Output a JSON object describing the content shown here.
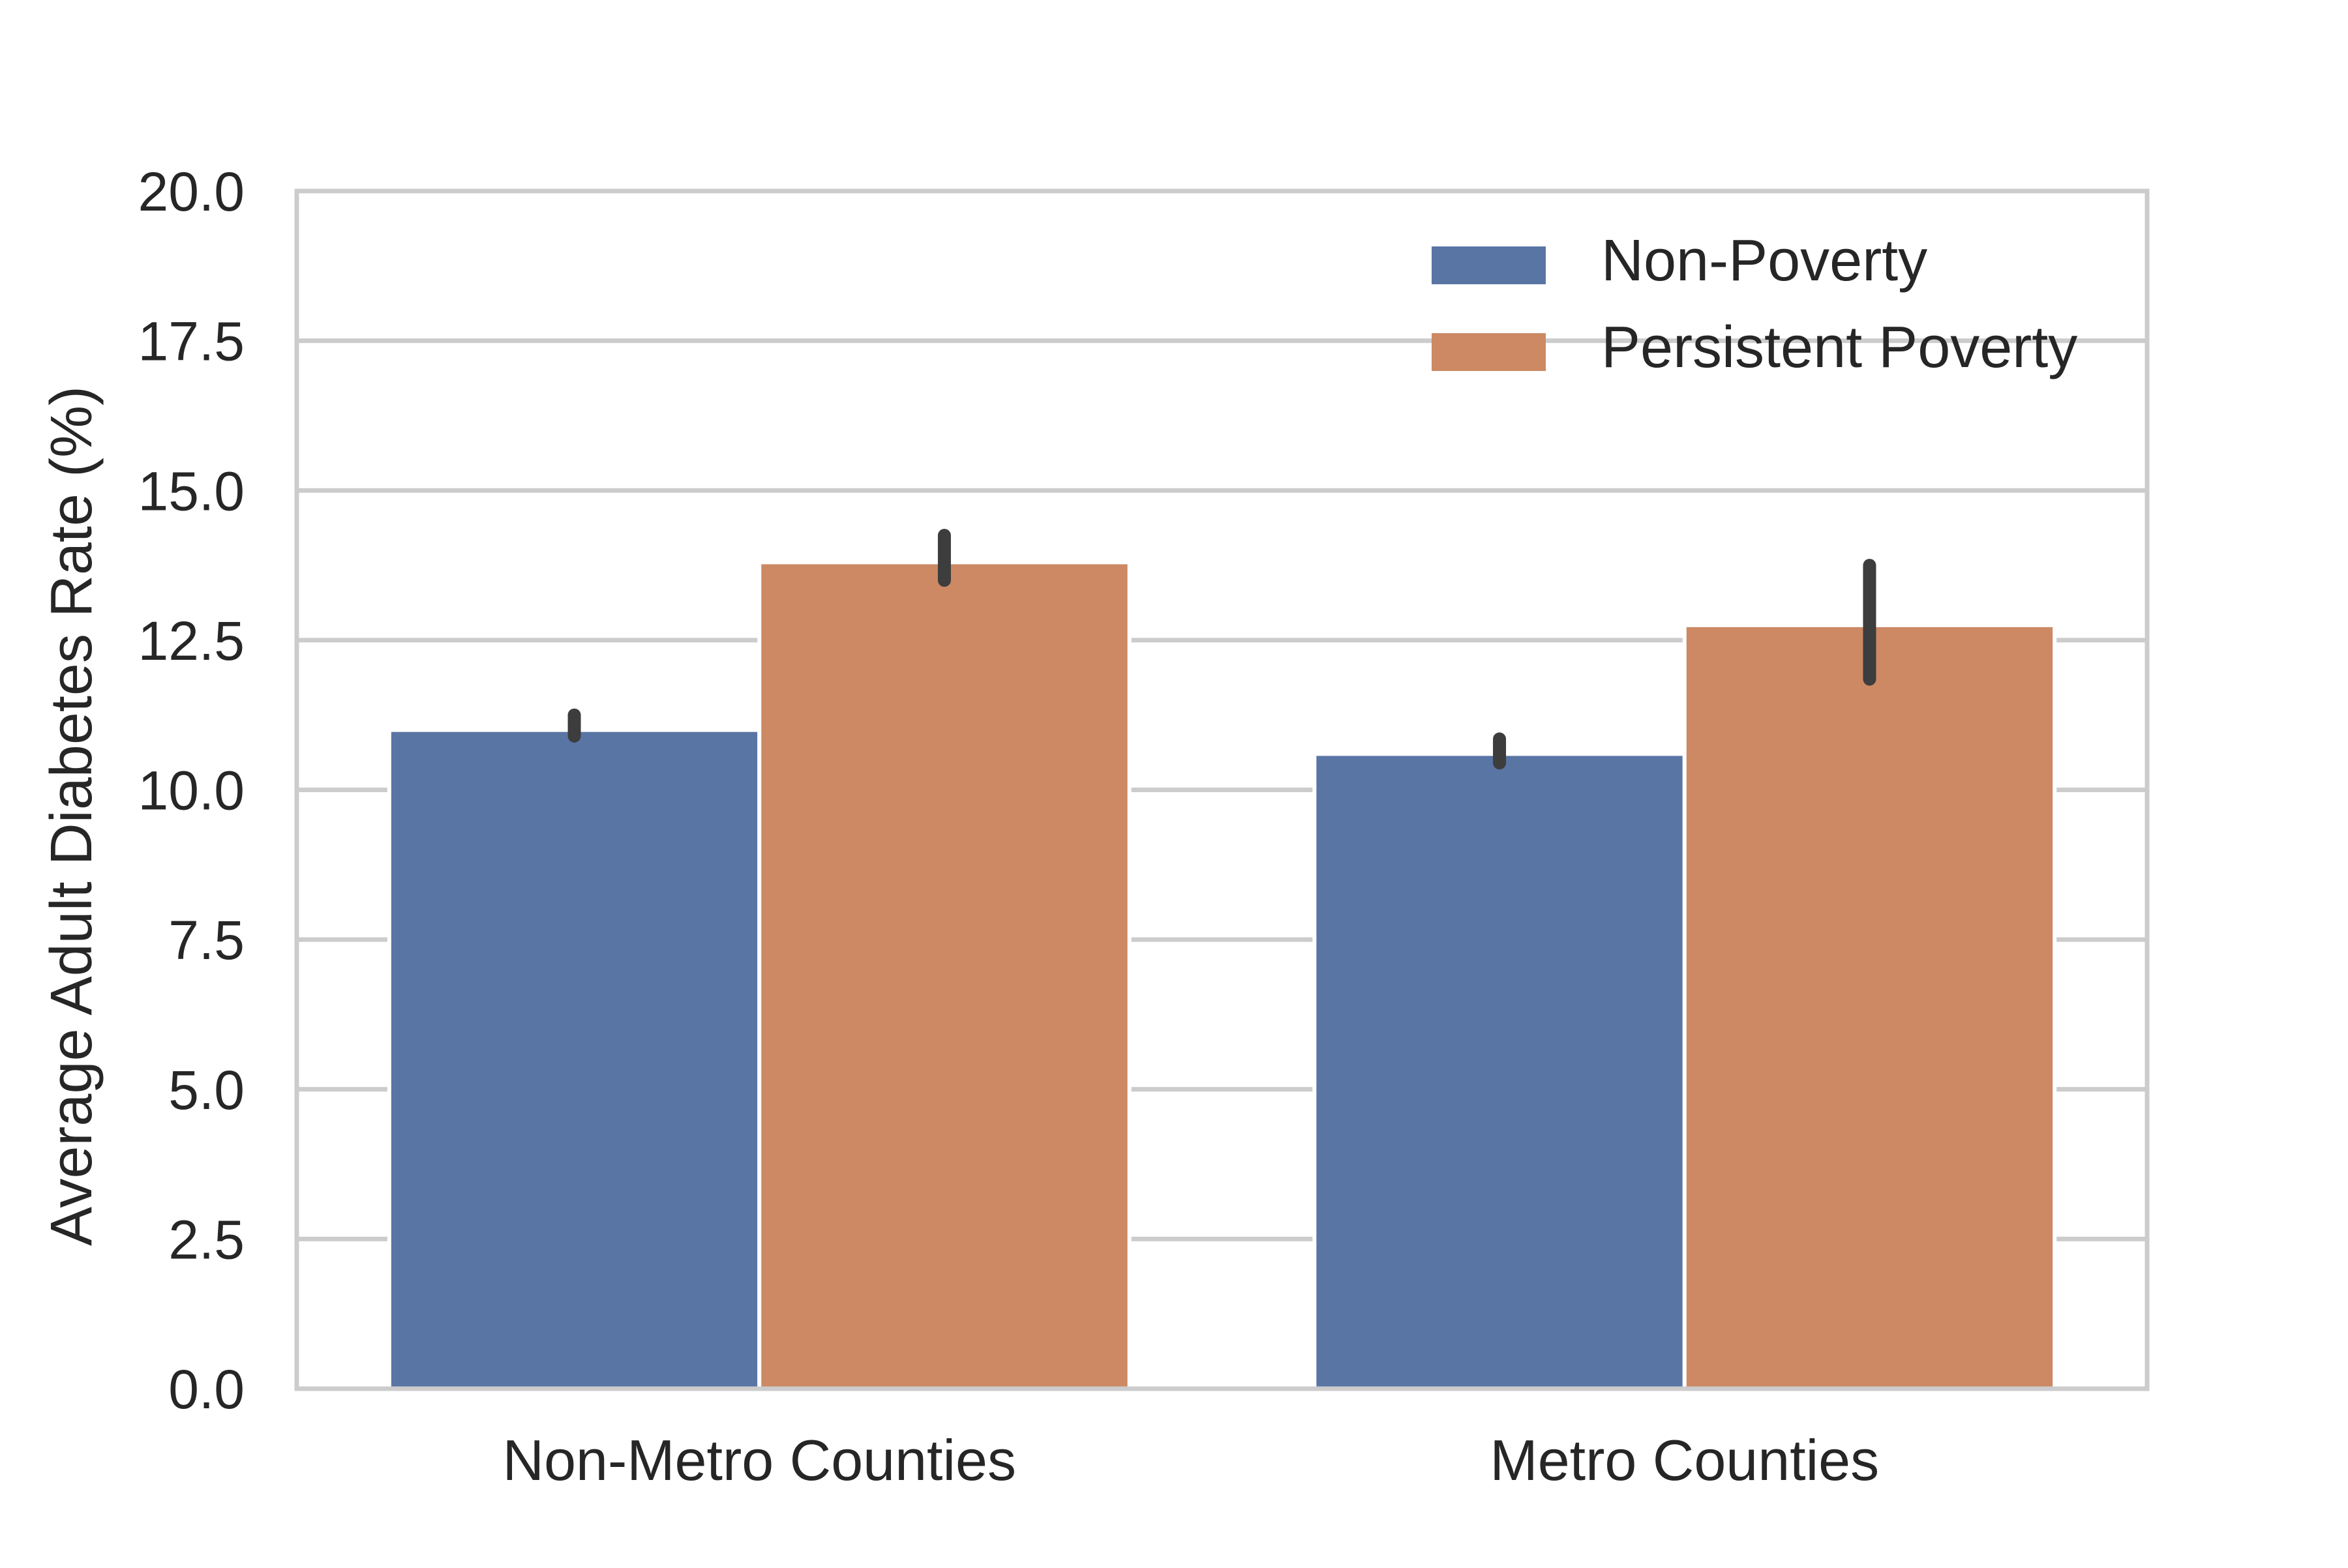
{
  "chart_data": {
    "type": "bar",
    "title": "",
    "xlabel": "",
    "ylabel": "Average Adult Diabetes Rate (%)",
    "categories": [
      "Non-Metro Counties",
      "Metro Counties"
    ],
    "series": [
      {
        "name": "Non-Poverty",
        "color": "#5975a4",
        "values": [
          11.0,
          10.6
        ],
        "ci_low": [
          10.9,
          10.45
        ],
        "ci_high": [
          11.25,
          10.85
        ]
      },
      {
        "name": "Persistent Poverty",
        "color": "#cc8963",
        "values": [
          13.8,
          12.75
        ],
        "ci_low": [
          13.5,
          11.85
        ],
        "ci_high": [
          14.25,
          13.75
        ]
      }
    ],
    "ylim": [
      0,
      20
    ],
    "yticks": [
      "0.0",
      "2.5",
      "5.0",
      "7.5",
      "10.0",
      "12.5",
      "15.0",
      "17.5",
      "20.0"
    ],
    "grid": "horizontal",
    "legend_position": "top-right"
  }
}
